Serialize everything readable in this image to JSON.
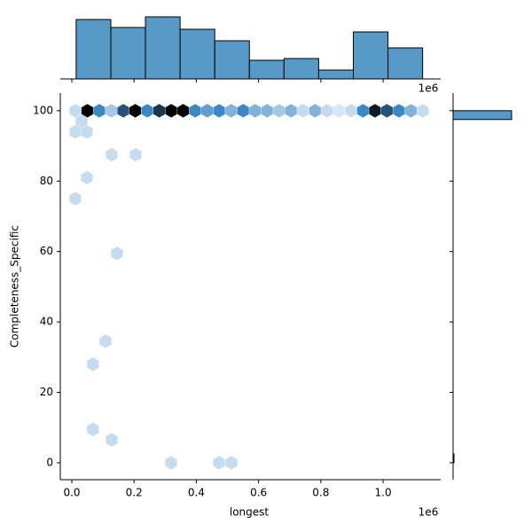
{
  "chart_data": [
    {
      "type": "hexbin",
      "xlabel": "longest",
      "ylabel": "Completeness_Specific",
      "offset_label": "1e6",
      "x": [
        11400,
        49900,
        88400,
        126900,
        165400,
        203900,
        242400,
        280900,
        319400,
        357900,
        396400,
        434900,
        473400,
        511900,
        550400,
        588900,
        627400,
        665900,
        704400,
        742900,
        781400,
        819900,
        858400,
        896900,
        935400,
        973900,
        1012400,
        1050900,
        1089400,
        1127900,
        11400,
        48400,
        31000,
        48400,
        11400,
        128000,
        205000,
        145000,
        108000,
        68000,
        68000,
        128000,
        319000,
        473000,
        513000
      ],
      "y": [
        100,
        100,
        100,
        100,
        100,
        100,
        100,
        100,
        100,
        100,
        100,
        100,
        100,
        100,
        100,
        100,
        100,
        100,
        100,
        100,
        100,
        100,
        100,
        100,
        100,
        100,
        100,
        100,
        100,
        100,
        94,
        94,
        97,
        81,
        75,
        87.5,
        87.5,
        59.5,
        34.5,
        28,
        9.5,
        6.5,
        0,
        0,
        0
      ],
      "counts": [
        1,
        10,
        5,
        2,
        7,
        10,
        5,
        8,
        10,
        10,
        5,
        4,
        5,
        3,
        5,
        3,
        3,
        2,
        3,
        1,
        3,
        1,
        0.5,
        1,
        5,
        9,
        7,
        5,
        3,
        1,
        1,
        1,
        1,
        1,
        1,
        1,
        1,
        1,
        1,
        1,
        1,
        1,
        1,
        1,
        1
      ],
      "colors": [
        "#e8f1fa",
        "#3b88c4",
        "#000000"
      ],
      "xlim": [
        -37000,
        1185000
      ],
      "ylim": [
        -4.8,
        105
      ],
      "xticks": [
        {
          "value": 0,
          "label": "0.0"
        },
        {
          "value": 200000,
          "label": "0.2"
        },
        {
          "value": 400000,
          "label": "0.4"
        },
        {
          "value": 600000,
          "label": "0.6"
        },
        {
          "value": 800000,
          "label": "0.8"
        },
        {
          "value": 1000000,
          "label": "1.0"
        }
      ],
      "yticks": [
        0,
        20,
        40,
        60,
        80,
        100
      ]
    },
    {
      "type": "histogram",
      "orientation": "vertical",
      "color": "#5799c7",
      "bins": [
        14000,
        125300,
        236600,
        347900,
        459200,
        570500,
        681800,
        793100,
        904400,
        1015700,
        1127000
      ],
      "counts": [
        67,
        58,
        70,
        56,
        43,
        21,
        23,
        10,
        53,
        35
      ],
      "ylim": [
        0,
        73
      ]
    },
    {
      "type": "histogram",
      "orientation": "horizontal",
      "color": "#5799c7",
      "bins": [
        0,
        2.5,
        5,
        7.5,
        10,
        12.5,
        15,
        17.5,
        20,
        22.5,
        25,
        27.5,
        30,
        32.5,
        35,
        37.5,
        40,
        42.5,
        45,
        47.5,
        50,
        52.5,
        55,
        57.5,
        60,
        62.5,
        65,
        67.5,
        70,
        72.5,
        75,
        77.5,
        80,
        82.5,
        85,
        87.5,
        90,
        92.5,
        95,
        97.5,
        100
      ],
      "counts": [
        1,
        0,
        0,
        0,
        0,
        0,
        0,
        0,
        0,
        0,
        0,
        0,
        0,
        0,
        0,
        0,
        0,
        0,
        0,
        0,
        0,
        0,
        0,
        0,
        0,
        0,
        0,
        0,
        0,
        0,
        0,
        0,
        0,
        0,
        0,
        0,
        0,
        0,
        0,
        66
      ],
      "xlim": [
        0,
        70
      ]
    }
  ]
}
